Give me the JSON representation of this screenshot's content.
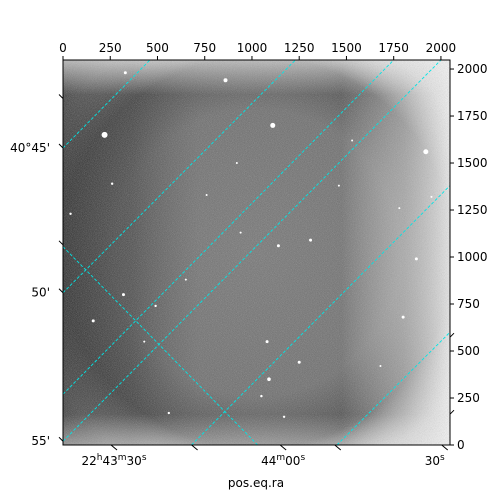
{
  "chart_data": {
    "type": "image",
    "xlabel": "pos.eq.ra",
    "ylabel": "",
    "pixel_x_axis": {
      "range": [
        0,
        2048
      ],
      "ticks": [
        {
          "value": 0,
          "label": "0"
        },
        {
          "value": 250,
          "label": "250"
        },
        {
          "value": 500,
          "label": "500"
        },
        {
          "value": 750,
          "label": "750"
        },
        {
          "value": 1000,
          "label": "1000"
        },
        {
          "value": 1250,
          "label": "1250"
        },
        {
          "value": 1500,
          "label": "1500"
        },
        {
          "value": 1750,
          "label": "1750"
        },
        {
          "value": 2000,
          "label": "2000"
        }
      ]
    },
    "pixel_y_axis": {
      "range": [
        0,
        2048
      ],
      "ticks": [
        {
          "value": 0,
          "label": "0"
        },
        {
          "value": 250,
          "label": "250"
        },
        {
          "value": 500,
          "label": "500"
        },
        {
          "value": 750,
          "label": "750"
        },
        {
          "value": 1000,
          "label": "1000"
        },
        {
          "value": 1250,
          "label": "1250"
        },
        {
          "value": 1500,
          "label": "1500"
        },
        {
          "value": 1750,
          "label": "1750"
        },
        {
          "value": 2000,
          "label": "2000"
        }
      ]
    },
    "ra_ticks": [
      {
        "x": 270,
        "y": 0,
        "label_main": "22",
        "label_sup1": "h",
        "label_mid": "43",
        "label_sup2": "m",
        "label_end": "30",
        "label_sup3": "s"
      },
      {
        "x": 1165,
        "y": 0,
        "label_main": "",
        "label_sup1": "",
        "label_mid": "44",
        "label_sup2": "m",
        "label_end": "00",
        "label_sup3": "s"
      },
      {
        "x": 2020,
        "y": 0,
        "label_main": "",
        "label_sup1": "",
        "label_mid": "",
        "label_sup2": "",
        "label_end": "30",
        "label_sup3": "s"
      }
    ],
    "dec_ticks": [
      {
        "x": 0,
        "y": 1580,
        "label": "40°45'"
      },
      {
        "x": 0,
        "y": 810,
        "label": "50'"
      },
      {
        "x": 0,
        "y": 20,
        "label": "55'"
      }
    ],
    "grid": true,
    "grid_color": "#00e5e5",
    "grid_lines": [
      {
        "from": [
          0,
          1580
        ],
        "to": [
          460,
          2048
        ]
      },
      {
        "from": [
          0,
          810
        ],
        "to": [
          1230,
          2048
        ]
      },
      {
        "from": [
          0,
          20
        ],
        "to": [
          2000,
          2048
        ]
      },
      {
        "from": [
          680,
          0
        ],
        "to": [
          2048,
          1380
        ]
      },
      {
        "from": [
          1450,
          0
        ],
        "to": [
          2048,
          600
        ]
      },
      {
        "from": [
          0,
          1055
        ],
        "to": [
          1030,
          0
        ]
      },
      {
        "from": [
          0,
          270
        ],
        "to": [
          1750,
          2048
        ]
      },
      {
        "from": [
          0,
          1750
        ],
        "to": [
          0,
          1750
        ]
      },
      {
        "from": [
          0,
          0
        ],
        "to": [
          0,
          0
        ]
      }
    ],
    "colormap": "gray",
    "stars": [
      {
        "x": 220,
        "y": 1650,
        "r": 3
      },
      {
        "x": 1110,
        "y": 1700,
        "r": 2.5
      },
      {
        "x": 1920,
        "y": 1560,
        "r": 2.5
      },
      {
        "x": 860,
        "y": 1940,
        "r": 2
      },
      {
        "x": 330,
        "y": 1980,
        "r": 1.5
      },
      {
        "x": 1140,
        "y": 1060,
        "r": 1.5
      },
      {
        "x": 1310,
        "y": 1090,
        "r": 1.5
      },
      {
        "x": 320,
        "y": 800,
        "r": 1.5
      },
      {
        "x": 160,
        "y": 660,
        "r": 1.5
      },
      {
        "x": 490,
        "y": 740,
        "r": 1.2
      },
      {
        "x": 1080,
        "y": 550,
        "r": 1.5
      },
      {
        "x": 1250,
        "y": 440,
        "r": 1.5
      },
      {
        "x": 1090,
        "y": 350,
        "r": 1.8
      },
      {
        "x": 1800,
        "y": 680,
        "r": 1.5
      },
      {
        "x": 1870,
        "y": 990,
        "r": 1.5
      },
      {
        "x": 40,
        "y": 1230,
        "r": 1.2
      },
      {
        "x": 260,
        "y": 1390,
        "r": 1.2
      },
      {
        "x": 920,
        "y": 1500,
        "r": 1
      },
      {
        "x": 650,
        "y": 880,
        "r": 1
      },
      {
        "x": 560,
        "y": 170,
        "r": 1.2
      },
      {
        "x": 1170,
        "y": 150,
        "r": 1.2
      },
      {
        "x": 1460,
        "y": 1380,
        "r": 1
      },
      {
        "x": 1530,
        "y": 1620,
        "r": 1
      },
      {
        "x": 1780,
        "y": 1260,
        "r": 1
      },
      {
        "x": 1050,
        "y": 260,
        "r": 1.2
      },
      {
        "x": 760,
        "y": 1330,
        "r": 1
      },
      {
        "x": 1680,
        "y": 420,
        "r": 1
      },
      {
        "x": 430,
        "y": 550,
        "r": 1
      },
      {
        "x": 1950,
        "y": 1320,
        "r": 1
      },
      {
        "x": 940,
        "y": 1130,
        "r": 1
      }
    ]
  }
}
